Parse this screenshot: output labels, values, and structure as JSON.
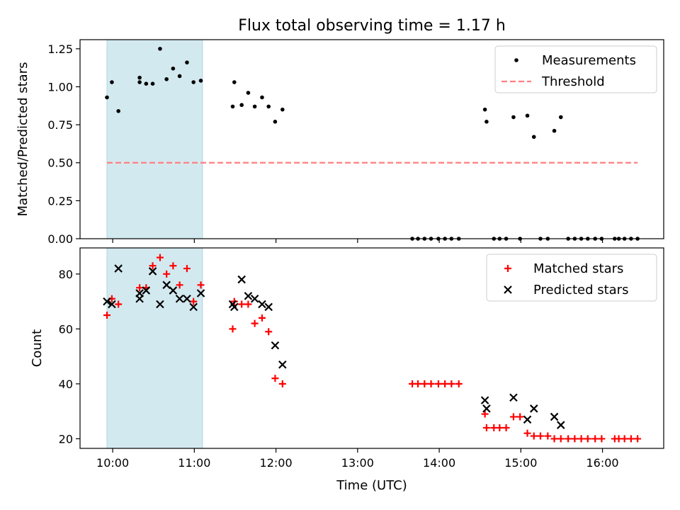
{
  "figure_title": "Flux total observing time = 1.17 h",
  "colors": {
    "measurement": "#000000",
    "threshold": "#ff7f7f",
    "matched": "#ff0000",
    "predicted": "#000000",
    "shade": "#d3e9f0",
    "shade_edge": "#a9d6e0"
  },
  "chart_data": [
    {
      "type": "scatter",
      "title": "Flux total observing time = 1.17 h",
      "xlabel": "",
      "ylabel": "Matched/Predicted stars",
      "xlim": [
        9.6,
        16.75
      ],
      "ylim": [
        0,
        1.31
      ],
      "yticks": [
        0,
        0.25,
        0.5,
        0.75,
        1.0,
        1.25
      ],
      "ytick_labels": [
        "0.00",
        "0.25",
        "0.50",
        "0.75",
        "1.00",
        "1.25"
      ],
      "xticks": [
        10,
        11,
        12,
        13,
        14,
        15,
        16
      ],
      "shaded_region": {
        "x_start": 9.93,
        "x_end": 11.1
      },
      "legend": {
        "location": "top-right",
        "entries": [
          "Measurements",
          "Threshold"
        ]
      },
      "series": [
        {
          "name": "Measurements",
          "marker": "dot",
          "x": [
            9.93,
            9.99,
            10.07,
            10.33,
            10.33,
            10.41,
            10.49,
            10.58,
            10.66,
            10.74,
            10.82,
            10.91,
            10.99,
            11.08,
            11.47,
            11.49,
            11.58,
            11.66,
            11.74,
            11.83,
            11.91,
            11.99,
            12.08,
            13.67,
            13.74,
            13.82,
            13.9,
            13.99,
            14.07,
            14.15,
            14.24,
            14.56,
            14.58,
            14.67,
            14.74,
            14.82,
            14.91,
            14.99,
            15.08,
            15.16,
            15.24,
            15.33,
            15.41,
            15.49,
            15.58,
            15.66,
            15.74,
            15.82,
            15.91,
            15.99,
            16.15,
            16.2,
            16.27,
            16.35,
            16.43
          ],
          "y": [
            0.93,
            1.03,
            0.84,
            1.06,
            1.03,
            1.02,
            1.02,
            1.25,
            1.05,
            1.12,
            1.07,
            1.16,
            1.03,
            1.04,
            0.87,
            1.03,
            0.88,
            0.96,
            0.87,
            0.93,
            0.87,
            0.77,
            0.85,
            0,
            0,
            0,
            0,
            0,
            0,
            0,
            0,
            0.85,
            0.77,
            0,
            0,
            0,
            0.8,
            0,
            0.81,
            0.67,
            0,
            0,
            0.71,
            0.8,
            0,
            0,
            0,
            0,
            0,
            0,
            0,
            0,
            0,
            0,
            0
          ]
        },
        {
          "name": "Threshold",
          "marker": "dashed-line",
          "x": [
            9.93,
            16.43
          ],
          "y": [
            0.5,
            0.5
          ]
        }
      ]
    },
    {
      "type": "scatter",
      "title": "",
      "xlabel": "Time (UTC)",
      "ylabel": "Count",
      "xlim": [
        9.6,
        16.75
      ],
      "ylim": [
        16.5,
        89.5
      ],
      "yticks": [
        20,
        40,
        60,
        80
      ],
      "ytick_labels": [
        "20",
        "40",
        "60",
        "80"
      ],
      "xticks": [
        10,
        11,
        12,
        13,
        14,
        15,
        16
      ],
      "xtick_labels": [
        "10:00",
        "11:00",
        "12:00",
        "13:00",
        "14:00",
        "15:00",
        "16:00"
      ],
      "shaded_region": {
        "x_start": 9.93,
        "x_end": 11.1
      },
      "legend": {
        "location": "top-right",
        "entries": [
          "Matched stars",
          "Predicted stars"
        ]
      },
      "series": [
        {
          "name": "Matched stars",
          "marker": "plus",
          "x": [
            9.93,
            9.99,
            10.07,
            10.33,
            10.41,
            10.49,
            10.58,
            10.66,
            10.74,
            10.82,
            10.91,
            10.99,
            11.08,
            11.47,
            11.49,
            11.58,
            11.66,
            11.74,
            11.83,
            11.91,
            11.99,
            12.08,
            13.67,
            13.74,
            13.82,
            13.9,
            13.99,
            14.07,
            14.15,
            14.24,
            14.56,
            14.58,
            14.67,
            14.74,
            14.82,
            14.91,
            14.99,
            15.08,
            15.16,
            15.24,
            15.33,
            15.41,
            15.49,
            15.58,
            15.66,
            15.74,
            15.82,
            15.91,
            15.99,
            16.15,
            16.2,
            16.27,
            16.35,
            16.43
          ],
          "y": [
            65,
            71,
            69,
            75,
            75,
            83,
            86,
            80,
            83,
            76,
            82,
            70,
            76,
            60,
            70,
            69,
            69,
            62,
            64,
            59,
            42,
            40,
            40,
            40,
            40,
            40,
            40,
            40,
            40,
            40,
            29,
            24,
            24,
            24,
            24,
            28,
            28,
            22,
            21,
            21,
            21,
            20,
            20,
            20,
            20,
            20,
            20,
            20,
            20,
            20,
            20,
            20,
            20,
            20
          ]
        },
        {
          "name": "Predicted stars",
          "marker": "x",
          "x": [
            9.93,
            9.99,
            10.07,
            10.33,
            10.33,
            10.41,
            10.49,
            10.58,
            10.66,
            10.74,
            10.82,
            10.91,
            10.99,
            11.08,
            11.47,
            11.49,
            11.58,
            11.66,
            11.74,
            11.83,
            11.91,
            11.99,
            12.08,
            14.56,
            14.58,
            14.91,
            15.08,
            15.16,
            15.41,
            15.49
          ],
          "y": [
            70,
            69,
            82,
            73,
            71,
            74,
            81,
            69,
            76,
            74,
            71,
            71,
            68,
            73,
            69,
            68,
            78,
            72,
            71,
            69,
            68,
            54,
            47,
            34,
            31,
            35,
            27,
            31,
            28,
            25
          ]
        }
      ]
    }
  ]
}
